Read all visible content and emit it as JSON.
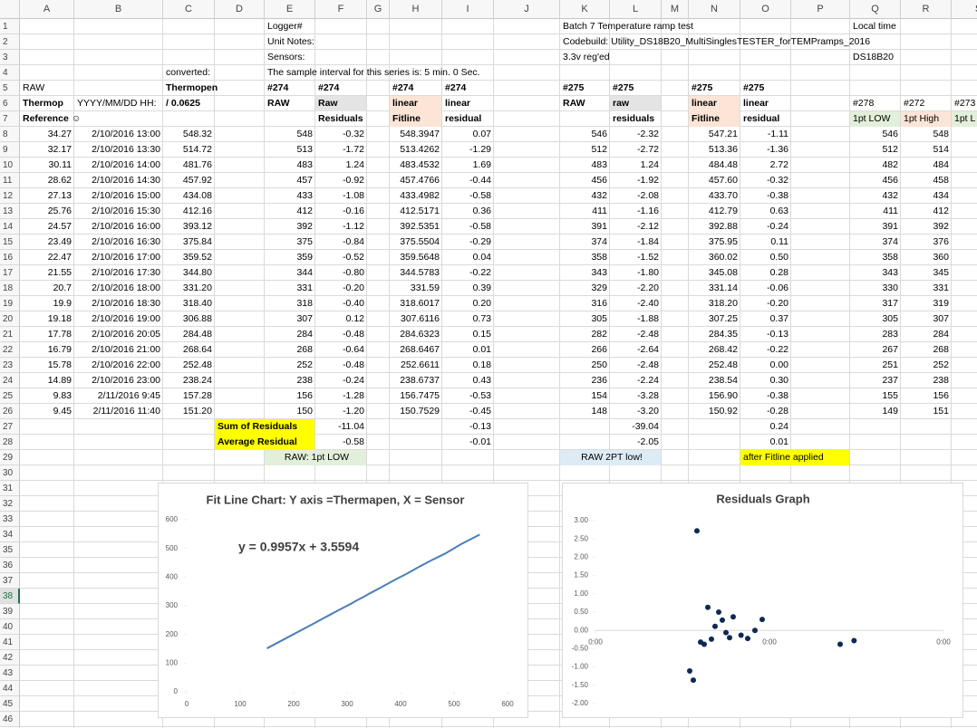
{
  "sheet": {
    "columns": [
      "A",
      "B",
      "C",
      "D",
      "E",
      "F",
      "G",
      "H",
      "I",
      "J",
      "K",
      "L",
      "M",
      "N",
      "O",
      "P",
      "Q",
      "R",
      "S"
    ],
    "row_numbers": [
      1,
      2,
      3,
      4,
      5,
      6,
      7,
      8,
      9,
      10,
      11,
      12,
      13,
      14,
      15,
      16,
      17,
      18,
      19,
      20,
      21,
      22,
      23,
      24,
      25,
      26,
      27,
      28,
      29,
      30,
      31,
      32,
      33,
      34,
      35,
      36,
      37,
      38,
      39,
      40,
      41,
      42,
      43,
      44,
      45,
      46
    ],
    "rows": [
      [
        null,
        null,
        null,
        null,
        "Logger#",
        null,
        null,
        null,
        null,
        null,
        "Batch 7 Temperature ramp test",
        null,
        null,
        null,
        null,
        null,
        "Local time"
      ],
      [
        null,
        null,
        null,
        null,
        "Unit Notes:",
        null,
        null,
        null,
        null,
        null,
        " Codebuild: Utility_DS18B20_MultiSinglesTESTER_forTEMPramps_2016"
      ],
      [
        null,
        null,
        null,
        null,
        "Sensors:",
        null,
        null,
        null,
        null,
        null,
        "3.3v reg'ed",
        null,
        null,
        null,
        null,
        null,
        "DS18B20"
      ],
      [
        null,
        null,
        "converted:",
        null,
        "The sample interval for this series is: 5 min.  0 Sec."
      ],
      [
        "RAW",
        null,
        "Thermopen",
        null,
        "#274",
        "#274",
        null,
        "#274",
        "#274",
        null,
        "#275",
        "#275",
        null,
        "#275",
        "#275"
      ],
      [
        "Thermop",
        "YYYY/MM/DD HH:",
        "/ 0.0625",
        null,
        "RAW",
        "Raw",
        null,
        "linear",
        "linear",
        null,
        "RAW",
        "raw",
        null,
        "linear",
        "linear",
        null,
        "#278",
        "#272",
        "#273"
      ],
      [
        "Reference ☺",
        null,
        null,
        null,
        null,
        "Residuals",
        null,
        "Fitline",
        "residual",
        null,
        null,
        "residuals",
        null,
        "Fitline",
        "residual",
        null,
        "1pt LOW",
        "1pt High",
        "1pt L"
      ],
      [
        "34.27",
        "2/10/2016 13:00",
        "548.32",
        null,
        "548",
        "-0.32",
        null,
        "548.3947",
        "0.07",
        null,
        "546",
        "-2.32",
        null,
        "547.21",
        "-1.11",
        null,
        "546",
        "548"
      ],
      [
        "32.17",
        "2/10/2016 13:30",
        "514.72",
        null,
        "513",
        "-1.72",
        null,
        "513.4262",
        "-1.29",
        null,
        "512",
        "-2.72",
        null,
        "513.36",
        "-1.36",
        null,
        "512",
        "514"
      ],
      [
        "30.11",
        "2/10/2016 14:00",
        "481.76",
        null,
        "483",
        "1.24",
        null,
        "483.4532",
        "1.69",
        null,
        "483",
        "1.24",
        null,
        "484.48",
        "2.72",
        null,
        "482",
        "484"
      ],
      [
        "28.62",
        "2/10/2016 14:30",
        "457.92",
        null,
        "457",
        "-0.92",
        null,
        "457.4766",
        "-0.44",
        null,
        "456",
        "-1.92",
        null,
        "457.60",
        "-0.32",
        null,
        "456",
        "458"
      ],
      [
        "27.13",
        "2/10/2016 15:00",
        "434.08",
        null,
        "433",
        "-1.08",
        null,
        "433.4982",
        "-0.58",
        null,
        "432",
        "-2.08",
        null,
        "433.70",
        "-0.38",
        null,
        "432",
        "434"
      ],
      [
        "25.76",
        "2/10/2016 15:30",
        "412.16",
        null,
        "412",
        "-0.16",
        null,
        "412.5171",
        "0.36",
        null,
        "411",
        "-1.16",
        null,
        "412.79",
        "0.63",
        null,
        "411",
        "412"
      ],
      [
        "24.57",
        "2/10/2016 16:00",
        "393.12",
        null,
        "392",
        "-1.12",
        null,
        "392.5351",
        "-0.58",
        null,
        "391",
        "-2.12",
        null,
        "392.88",
        "-0.24",
        null,
        "391",
        "392"
      ],
      [
        "23.49",
        "2/10/2016 16:30",
        "375.84",
        null,
        "375",
        "-0.84",
        null,
        "375.5504",
        "-0.29",
        null,
        "374",
        "-1.84",
        null,
        "375.95",
        "0.11",
        null,
        "374",
        "376"
      ],
      [
        "22.47",
        "2/10/2016 17:00",
        "359.52",
        null,
        "359",
        "-0.52",
        null,
        "359.5648",
        "0.04",
        null,
        "358",
        "-1.52",
        null,
        "360.02",
        "0.50",
        null,
        "358",
        "360"
      ],
      [
        "21.55",
        "2/10/2016 17:30",
        "344.80",
        null,
        "344",
        "-0.80",
        null,
        "344.5783",
        "-0.22",
        null,
        "343",
        "-1.80",
        null,
        "345.08",
        "0.28",
        null,
        "343",
        "345"
      ],
      [
        "20.7",
        "2/10/2016 18:00",
        "331.20",
        null,
        "331",
        "-0.20",
        null,
        "331.59",
        "0.39",
        null,
        "329",
        "-2.20",
        null,
        "331.14",
        "-0.06",
        null,
        "330",
        "331"
      ],
      [
        "19.9",
        "2/10/2016 18:30",
        "318.40",
        null,
        "318",
        "-0.40",
        null,
        "318.6017",
        "0.20",
        null,
        "316",
        "-2.40",
        null,
        "318.20",
        "-0.20",
        null,
        "317",
        "319"
      ],
      [
        "19.18",
        "2/10/2016 19:00",
        "306.88",
        null,
        "307",
        "0.12",
        null,
        "307.6116",
        "0.73",
        null,
        "305",
        "-1.88",
        null,
        "307.25",
        "0.37",
        null,
        "305",
        "307"
      ],
      [
        "17.78",
        "2/10/2016 20:05",
        "284.48",
        null,
        "284",
        "-0.48",
        null,
        "284.6323",
        "0.15",
        null,
        "282",
        "-2.48",
        null,
        "284.35",
        "-0.13",
        null,
        "283",
        "284"
      ],
      [
        "16.79",
        "2/10/2016 21:00",
        "268.64",
        null,
        "268",
        "-0.64",
        null,
        "268.6467",
        "0.01",
        null,
        "266",
        "-2.64",
        null,
        "268.42",
        "-0.22",
        null,
        "267",
        "268"
      ],
      [
        "15.78",
        "2/10/2016 22:00",
        "252.48",
        null,
        "252",
        "-0.48",
        null,
        "252.6611",
        "0.18",
        null,
        "250",
        "-2.48",
        null,
        "252.48",
        "0.00",
        null,
        "251",
        "252"
      ],
      [
        "14.89",
        "2/10/2016 23:00",
        "238.24",
        null,
        "238",
        "-0.24",
        null,
        "238.6737",
        "0.43",
        null,
        "236",
        "-2.24",
        null,
        "238.54",
        "0.30",
        null,
        "237",
        "238"
      ],
      [
        "9.83",
        "2/11/2016 9:45",
        "157.28",
        null,
        "156",
        "-1.28",
        null,
        "156.7475",
        "-0.53",
        null,
        "154",
        "-3.28",
        null,
        "156.90",
        "-0.38",
        null,
        "155",
        "156"
      ],
      [
        "9.45",
        "2/11/2016 11:40",
        "151.20",
        null,
        "150",
        "-1.20",
        null,
        "150.7529",
        "-0.45",
        null,
        "148",
        "-3.20",
        null,
        "150.92",
        "-0.28",
        null,
        "149",
        "151"
      ],
      [
        null,
        null,
        null,
        "Sum of Residuals",
        null,
        "-11.04",
        null,
        null,
        "-0.13",
        null,
        null,
        "-39.04",
        null,
        null,
        "0.24"
      ],
      [
        null,
        null,
        null,
        "Average Residual",
        null,
        "-0.58",
        null,
        null,
        "-0.01",
        null,
        null,
        "-2.05",
        null,
        null,
        "0.01"
      ],
      [
        null,
        null,
        null,
        null,
        "RAW: 1pt LOW",
        null,
        null,
        null,
        null,
        null,
        "RAW 2PT low!",
        null,
        null,
        null,
        "after Fitline applied"
      ]
    ]
  },
  "chart_data": [
    {
      "type": "line",
      "title": "Fit Line Chart: Y axis =Thermapen, X = Sensor",
      "annotation": "y = 0.9957x + 3.5594",
      "x": [
        548,
        513,
        483,
        457,
        433,
        412,
        392,
        375,
        359,
        344,
        331,
        318,
        307,
        284,
        268,
        252,
        238,
        156,
        150
      ],
      "values": [
        548.32,
        514.72,
        481.76,
        457.92,
        434.08,
        412.16,
        393.12,
        375.84,
        359.52,
        344.8,
        331.2,
        318.4,
        306.88,
        284.48,
        268.64,
        252.48,
        238.24,
        157.28,
        151.2
      ],
      "color": "#4a7ebb",
      "xlim": [
        0,
        600
      ],
      "xticks": [
        0,
        100,
        200,
        300,
        400,
        500,
        600
      ],
      "ylim": [
        0,
        600
      ],
      "yticks": [
        0,
        100,
        200,
        300,
        400,
        500,
        600
      ]
    },
    {
      "type": "scatter",
      "title": "Residuals Graph",
      "x": [
        13,
        13.5,
        14,
        14.5,
        15,
        15.5,
        16,
        16.5,
        17,
        17.5,
        18,
        18.5,
        19,
        20.0833,
        21,
        22,
        23,
        33.75,
        35.6667
      ],
      "values": [
        -1.11,
        -1.36,
        2.72,
        -0.32,
        -0.38,
        0.63,
        -0.24,
        0.11,
        0.5,
        0.28,
        -0.06,
        -0.2,
        0.37,
        -0.13,
        -0.22,
        0,
        0.3,
        -0.38,
        -0.28
      ],
      "color": "#0d2a52",
      "xlim": [
        0,
        48
      ],
      "xticks": [
        {
          "value": 0,
          "label": "0:00"
        },
        {
          "value": 24,
          "label": "0:00"
        },
        {
          "value": 48,
          "label": "0:00"
        }
      ],
      "ylim": [
        -2,
        3
      ],
      "yticks": [
        {
          "value": -2,
          "label": "-2.00"
        },
        {
          "value": -1.5,
          "label": "-1.50"
        },
        {
          "value": -1,
          "label": "-1.00"
        },
        {
          "value": -0.5,
          "label": "-0.50"
        },
        {
          "value": 0,
          "label": "0.00"
        },
        {
          "value": 0.5,
          "label": "0.50"
        },
        {
          "value": 1,
          "label": "1.00"
        },
        {
          "value": 1.5,
          "label": "1.50"
        },
        {
          "value": 2,
          "label": "2.00"
        },
        {
          "value": 2.5,
          "label": "2.50"
        },
        {
          "value": 3,
          "label": "3.00"
        }
      ]
    }
  ]
}
